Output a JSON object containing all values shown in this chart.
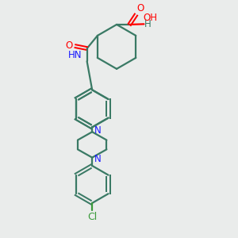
{
  "bg_color": "#eaeceb",
  "bond_color": "#3a7a65",
  "N_color": "#1a1aff",
  "O_color": "#ff0000",
  "Cl_color": "#3a9a3a",
  "line_width": 1.6,
  "font_size": 8.5,
  "fig_size": [
    3.0,
    3.0
  ],
  "dpi": 100,
  "xlim": [
    0,
    10
  ],
  "ylim": [
    0,
    10
  ]
}
